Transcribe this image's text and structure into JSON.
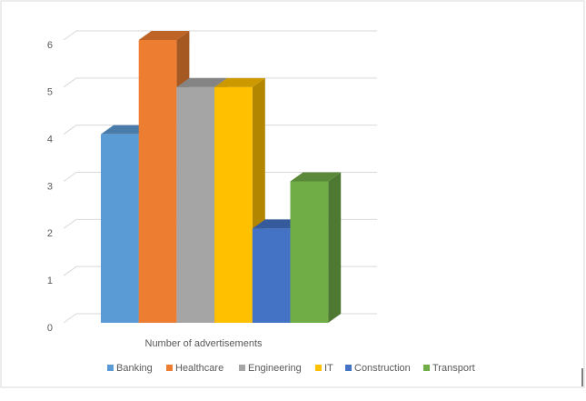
{
  "chart_data": {
    "type": "bar",
    "three_d": true,
    "categories": [
      "Number of advertisements"
    ],
    "series": [
      {
        "name": "Banking",
        "color": "#5b9bd5",
        "values": [
          4
        ]
      },
      {
        "name": "Healthcare",
        "color": "#ed7d31",
        "values": [
          6
        ]
      },
      {
        "name": "Engineering",
        "color": "#a5a5a5",
        "values": [
          5
        ]
      },
      {
        "name": "IT",
        "color": "#ffc000",
        "values": [
          5
        ]
      },
      {
        "name": "Construction",
        "color": "#4472c4",
        "values": [
          2
        ]
      },
      {
        "name": "Transport",
        "color": "#70ad47",
        "values": [
          3
        ]
      }
    ],
    "ylim": [
      0,
      6
    ],
    "yticks": [
      0,
      1,
      2,
      3,
      4,
      5,
      6
    ],
    "grid": true,
    "legend": "bottom"
  }
}
